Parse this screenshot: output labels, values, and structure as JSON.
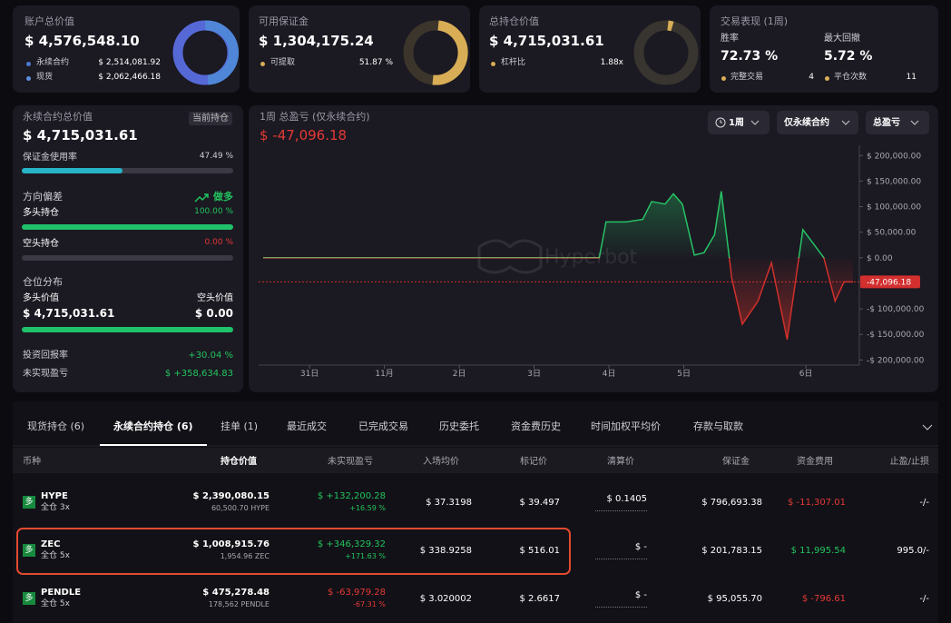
{
  "summary_cards": [
    {
      "title": "账户总价值",
      "value": "$ 4,576,548.10",
      "items": [
        {
          "label": "永续合约",
          "value": "$ 2,514,081.92"
        },
        {
          "label": "现货",
          "value": "$ 2,062,466.18"
        }
      ]
    },
    {
      "title": "可用保证金",
      "value": "$ 1,304,175.24",
      "items": [
        {
          "label": "可提取",
          "value": "51.87 %"
        }
      ]
    },
    {
      "title": "总持仓价值",
      "value": "$ 4,715,031.61",
      "items": [
        {
          "label": "杠杆比",
          "value": "1.88x"
        }
      ]
    },
    {
      "title": "交易表现 (1周)",
      "metrics": [
        {
          "label": "胜率",
          "value": "72.73 %"
        },
        {
          "label": "最大回撤",
          "value": "5.72 %"
        }
      ],
      "items": [
        {
          "label": "完整交易",
          "value": "4"
        },
        {
          "label": "平仓次数",
          "value": "11"
        }
      ]
    }
  ],
  "position_panel": {
    "title": "永续合约总价值",
    "badge": "当前持仓",
    "value": "$ 4,715,031.61",
    "margin_usage": {
      "label": "保证金使用率",
      "value": "47.49 %"
    },
    "direction": {
      "title": "方向偏差",
      "badge": "做多",
      "long": {
        "label": "多头持仓",
        "value": "100.00 %"
      },
      "short": {
        "label": "空头持仓",
        "value": "0.00 %"
      }
    },
    "distribution": {
      "title": "仓位分布",
      "long_label": "多头价值",
      "long_value": "$ 4,715,031.61",
      "short_label": "空头价值",
      "short_value": "$ 0.00"
    },
    "roi": {
      "label": "投资回报率",
      "value": "+30.04 %"
    },
    "unrealized": {
      "label": "未实现盈亏",
      "value": "$ +358,634.83"
    }
  },
  "pnl_chart": {
    "type": "line",
    "title": "1周 总盈亏 (仅永续合约)",
    "value": "$ -47,096.18",
    "controls": [
      "1周",
      "仅永续合约",
      "总盈亏"
    ],
    "watermark": "Hyperbot",
    "x": [
      -0.62,
      3.87,
      3.96,
      4.23,
      4.45,
      4.57,
      4.75,
      4.86,
      4.98,
      5.14,
      5.27,
      5.41,
      5.5,
      5.64,
      5.78,
      5.99,
      6.17,
      6.38,
      6.59,
      6.87,
      7.02,
      7.14,
      7.26
    ],
    "values": [
      0,
      0,
      70000,
      70000,
      75000,
      110000,
      105000,
      125000,
      105000,
      5000,
      10000,
      45000,
      130000,
      -40000,
      -130000,
      -85000,
      -10000,
      -160000,
      55000,
      0,
      -85000,
      -47096.18,
      -47096.18
    ],
    "xlim": [
      -0.68,
      7.32
    ],
    "xticks": [
      {
        "value": 0,
        "label": "31日"
      },
      {
        "value": 1,
        "label": "11月"
      },
      {
        "value": 2,
        "label": "2日"
      },
      {
        "value": 3,
        "label": "3日"
      },
      {
        "value": 4,
        "label": "4日"
      },
      {
        "value": 5,
        "label": "5日"
      },
      {
        "value": 6.63,
        "label": "6日"
      }
    ],
    "ylim": [
      -210000,
      220000
    ],
    "yticks": [
      {
        "value": 200000,
        "label": "$ 200,000.00"
      },
      {
        "value": 150000,
        "label": "$ 150,000.00"
      },
      {
        "value": 100000,
        "label": "$ 100,000.00"
      },
      {
        "value": 50000,
        "label": "$ 50,000.00"
      },
      {
        "value": 0,
        "label": "$ 0.00"
      },
      {
        "value": -100000,
        "label": "-$ 100,000.00"
      },
      {
        "value": -150000,
        "label": "-$ 150,000.00"
      },
      {
        "value": -200000,
        "label": "-$ 200,000.00"
      }
    ],
    "current": {
      "value": -47096.18,
      "label": "-47,096.18"
    }
  },
  "tabs": [
    "现货持仓 (6)",
    "永续合约持仓 (6)",
    "挂单 (1)",
    "最近成交",
    "已完成交易",
    "历史委托",
    "资金费历史",
    "时间加权平均价",
    "存款与取款"
  ],
  "table": {
    "headers": [
      "币种",
      "持仓价值",
      "未实现盈亏",
      "入场均价",
      "标记价",
      "清算价",
      "保证金",
      "资金费用",
      "止盈/止损"
    ],
    "rows": [
      {
        "side": "多",
        "coin": "HYPE",
        "mode": "全仓 3x",
        "value": "$ 2,390,080.15",
        "size": "60,500.70 HYPE",
        "pnl": "$ +132,200.28",
        "pnl_pct": "+16.59 %",
        "pnl_color": "#22c55e",
        "entry": "$ 37.3198",
        "mark": "$ 39.497",
        "liq": "$ 0.1405",
        "margin": "$ 796,693.38",
        "funding": "$ -11,307.01",
        "funding_color": "#e53935",
        "tpsl": "-/-"
      },
      {
        "side": "多",
        "coin": "ZEC",
        "mode": "全仓 5x",
        "value": "$ 1,008,915.76",
        "size": "1,954.96 ZEC",
        "pnl": "$ +346,329.32",
        "pnl_pct": "+171.63 %",
        "pnl_color": "#22c55e",
        "entry": "$ 338.9258",
        "mark": "$ 516.01",
        "liq": "$ -",
        "margin": "$ 201,783.15",
        "funding": "$ 11,995.54",
        "funding_color": "#22c55e",
        "tpsl": "995.0/-"
      },
      {
        "side": "多",
        "coin": "PENDLE",
        "mode": "全仓 5x",
        "value": "$ 475,278.48",
        "size": "178,562 PENDLE",
        "pnl": "$ -63,979.28",
        "pnl_pct": "-67.31 %",
        "pnl_color": "#e53935",
        "entry": "$ 3.020002",
        "mark": "$ 2.6617",
        "liq": "$ -",
        "margin": "$ 95,055.70",
        "funding": "$ -796.61",
        "funding_color": "#e53935",
        "tpsl": "-/-"
      }
    ]
  }
}
